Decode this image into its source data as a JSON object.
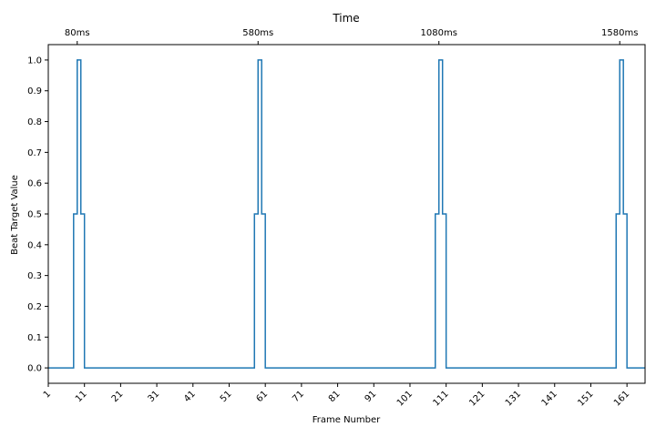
{
  "chart_data": {
    "type": "line",
    "step": true,
    "top_axis_title": "Time",
    "xlabel": "Frame Number",
    "ylabel": "Beat Target Value",
    "xlim": [
      1,
      166
    ],
    "ylim": [
      -0.05,
      1.05
    ],
    "x_ticks": [
      1,
      11,
      21,
      31,
      41,
      51,
      61,
      71,
      81,
      91,
      101,
      111,
      121,
      131,
      141,
      151,
      161
    ],
    "y_ticks": [
      "0.0",
      "0.1",
      "0.2",
      "0.3",
      "0.4",
      "0.5",
      "0.6",
      "0.7",
      "0.8",
      "0.9",
      "1.0"
    ],
    "top_ticks": [
      {
        "label": "80ms",
        "frame": 9
      },
      {
        "label": "580ms",
        "frame": 59
      },
      {
        "label": "1080ms",
        "frame": 109
      },
      {
        "label": "1580ms",
        "frame": 159
      }
    ],
    "series": [
      {
        "color": "#1f77b4",
        "points": [
          [
            1,
            0.0
          ],
          [
            8,
            0.0
          ],
          [
            8,
            0.5
          ],
          [
            9,
            0.5
          ],
          [
            9,
            1.0
          ],
          [
            10,
            1.0
          ],
          [
            10,
            0.5
          ],
          [
            11,
            0.5
          ],
          [
            11,
            0.0
          ],
          [
            58,
            0.0
          ],
          [
            58,
            0.5
          ],
          [
            59,
            0.5
          ],
          [
            59,
            1.0
          ],
          [
            60,
            1.0
          ],
          [
            60,
            0.5
          ],
          [
            61,
            0.5
          ],
          [
            61,
            0.0
          ],
          [
            108,
            0.0
          ],
          [
            108,
            0.5
          ],
          [
            109,
            0.5
          ],
          [
            109,
            1.0
          ],
          [
            110,
            1.0
          ],
          [
            110,
            0.5
          ],
          [
            111,
            0.5
          ],
          [
            111,
            0.0
          ],
          [
            158,
            0.0
          ],
          [
            158,
            0.5
          ],
          [
            159,
            0.5
          ],
          [
            159,
            1.0
          ],
          [
            160,
            1.0
          ],
          [
            160,
            0.5
          ],
          [
            161,
            0.5
          ],
          [
            161,
            0.0
          ],
          [
            166,
            0.0
          ]
        ]
      }
    ],
    "grid": false,
    "legend": "none"
  }
}
